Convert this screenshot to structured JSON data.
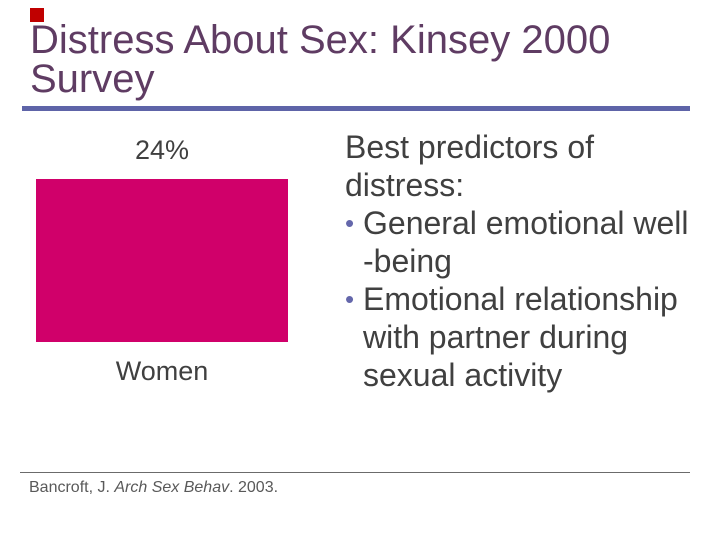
{
  "slide": {
    "title_line1": "Distress About Sex: Kinsey 2000",
    "title_line2": "Survey"
  },
  "chart": {
    "value_label": "24%",
    "category_label": "Women"
  },
  "chart_data": {
    "type": "bar",
    "categories": [
      "Women"
    ],
    "values": [
      24
    ],
    "value_labels": [
      "24%"
    ],
    "title": "Distress About Sex: Kinsey 2000 Survey",
    "xlabel": "",
    "ylabel": "",
    "ylim": [
      0,
      30
    ],
    "grid": false,
    "legend": "none",
    "bar_color": "#d0006a"
  },
  "right_panel": {
    "heading_lines": [
      "Best predictors of",
      "distress:"
    ],
    "bullets": [
      {
        "glyph": "•",
        "lines": [
          "General emotional well",
          "-being"
        ]
      },
      {
        "glyph": "•",
        "lines": [
          "Emotional relationship",
          "with partner during",
          "sexual activity"
        ]
      }
    ]
  },
  "footer": {
    "citation_pre": "Bancroft, J. ",
    "citation_italic": "Arch Sex Behav",
    "citation_post": ". 2003."
  },
  "colors": {
    "title_text": "#5f3c63",
    "title_underline": "#5e64a8",
    "bar": "#d0006a",
    "body_text": "#404040",
    "bullet": "#6467ab",
    "citation_text": "#595959",
    "footer_divider": "#6b6b6b",
    "corner_square": "#c00000"
  }
}
